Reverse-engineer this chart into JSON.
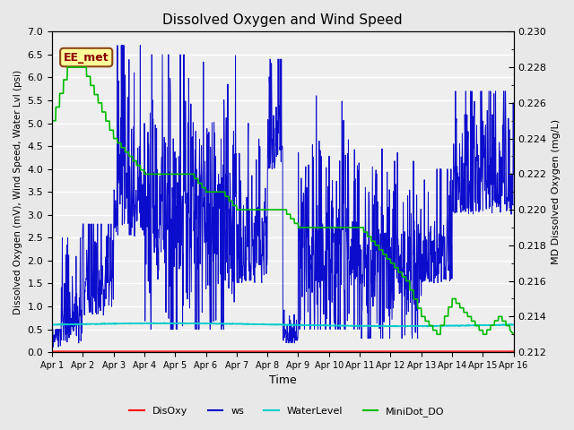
{
  "title": "Dissolved Oxygen and Wind Speed",
  "xlabel": "Time",
  "ylabel_left": "Dissolved Oxygen (mV), Wind Speed, Water Lvl (psi)",
  "ylabel_right": "MD Dissolved Oxygen (mg/L)",
  "ylim_left": [
    0.0,
    7.0
  ],
  "ylim_right": [
    0.212,
    0.23
  ],
  "yticks_left": [
    0.0,
    0.5,
    1.0,
    1.5,
    2.0,
    2.5,
    3.0,
    3.5,
    4.0,
    4.5,
    5.0,
    5.5,
    6.0,
    6.5,
    7.0
  ],
  "yticks_right": [
    0.212,
    0.214,
    0.216,
    0.218,
    0.22,
    0.222,
    0.224,
    0.226,
    0.228,
    0.23
  ],
  "background_color": "#e8e8e8",
  "annotation_text": "EE_met",
  "annotation_color": "#8B0000",
  "annotation_bg": "#ffff99",
  "colors": {
    "DisOxy": "#ff0000",
    "ws": "#0000cc",
    "WaterLevel": "#00cccc",
    "MiniDot_DO": "#00bb00"
  },
  "legend_labels": [
    "DisOxy",
    "ws",
    "WaterLevel",
    "MiniDot_DO"
  ],
  "xtick_labels": [
    "Apr 1",
    "Apr 2",
    "Apr 3",
    "Apr 4",
    "Apr 5",
    "Apr 6",
    "Apr 7",
    "Apr 8",
    "Apr 9",
    "Apr 10",
    "Apr 11",
    "Apr 12",
    "Apr 13",
    "Apr 14",
    "Apr 15",
    "Apr 16"
  ],
  "num_days": 15
}
